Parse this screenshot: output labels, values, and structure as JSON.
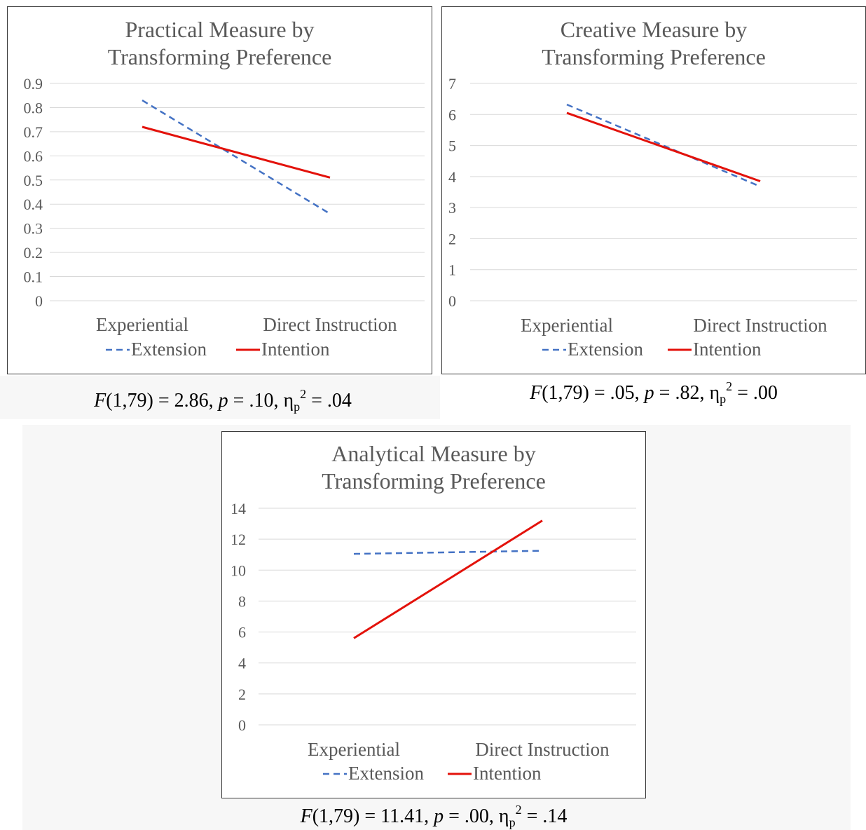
{
  "chart_data": [
    {
      "type": "line",
      "title": "Practical Measure by Transforming Preference",
      "categories": [
        "Experiential",
        "Direct Instruction"
      ],
      "series": [
        {
          "name": "Extension",
          "values": [
            0.83,
            0.36
          ],
          "color": "#4472C4",
          "style": "dashed"
        },
        {
          "name": "Intention",
          "values": [
            0.72,
            0.51
          ],
          "color": "#E3120B",
          "style": "solid"
        }
      ],
      "ylim": [
        0,
        0.9
      ],
      "yticks": [
        "0",
        "0.1",
        "0.2",
        "0.3",
        "0.4",
        "0.5",
        "0.6",
        "0.7",
        "0.8",
        "0.9"
      ],
      "grid": true,
      "legend": "bottom",
      "stat": {
        "df": "(1,79) = 2.86, ",
        "p": " = .10, η",
        "eta_sub": "p",
        "eta_sup": "2",
        "eta": " = .04"
      }
    },
    {
      "type": "line",
      "title": "Creative Measure by Transforming Preference",
      "categories": [
        "Experiential",
        "Direct Instruction"
      ],
      "series": [
        {
          "name": "Extension",
          "values": [
            6.32,
            3.68
          ],
          "color": "#4472C4",
          "style": "dashed"
        },
        {
          "name": "Intention",
          "values": [
            6.05,
            3.85
          ],
          "color": "#E3120B",
          "style": "solid"
        }
      ],
      "ylim": [
        0,
        7
      ],
      "yticks": [
        "0",
        "1",
        "2",
        "3",
        "4",
        "5",
        "6",
        "7"
      ],
      "grid": true,
      "legend": "bottom",
      "stat": {
        "df": "(1,79) = .05, ",
        "p": " = .82, η",
        "eta_sub": "p",
        "eta_sup": "2",
        "eta": " = .00"
      }
    },
    {
      "type": "line",
      "title": "Analytical Measure by Transforming Preference",
      "categories": [
        "Experiential",
        "Direct Instruction"
      ],
      "series": [
        {
          "name": "Extension",
          "values": [
            11.05,
            11.25
          ],
          "color": "#4472C4",
          "style": "dashed"
        },
        {
          "name": "Intention",
          "values": [
            5.6,
            13.2
          ],
          "color": "#E3120B",
          "style": "solid"
        }
      ],
      "ylim": [
        0,
        14
      ],
      "yticks": [
        "0",
        "2",
        "4",
        "6",
        "8",
        "10",
        "12",
        "14"
      ],
      "grid": true,
      "legend": "bottom",
      "stat": {
        "df": "(1,79) = 11.41, ",
        "p": " = .00, η",
        "eta_sub": "p",
        "eta_sup": "2",
        "eta": " = .14"
      }
    }
  ],
  "labels": {
    "F": "F",
    "p": "p",
    "practical_title_1": "Practical Measure by",
    "practical_title_2": "Transforming Preference",
    "creative_title_1": "Creative Measure by",
    "creative_title_2": "Transforming Preference",
    "analytical_title_1": "Analytical Measure by",
    "analytical_title_2": "Transforming Preference"
  }
}
